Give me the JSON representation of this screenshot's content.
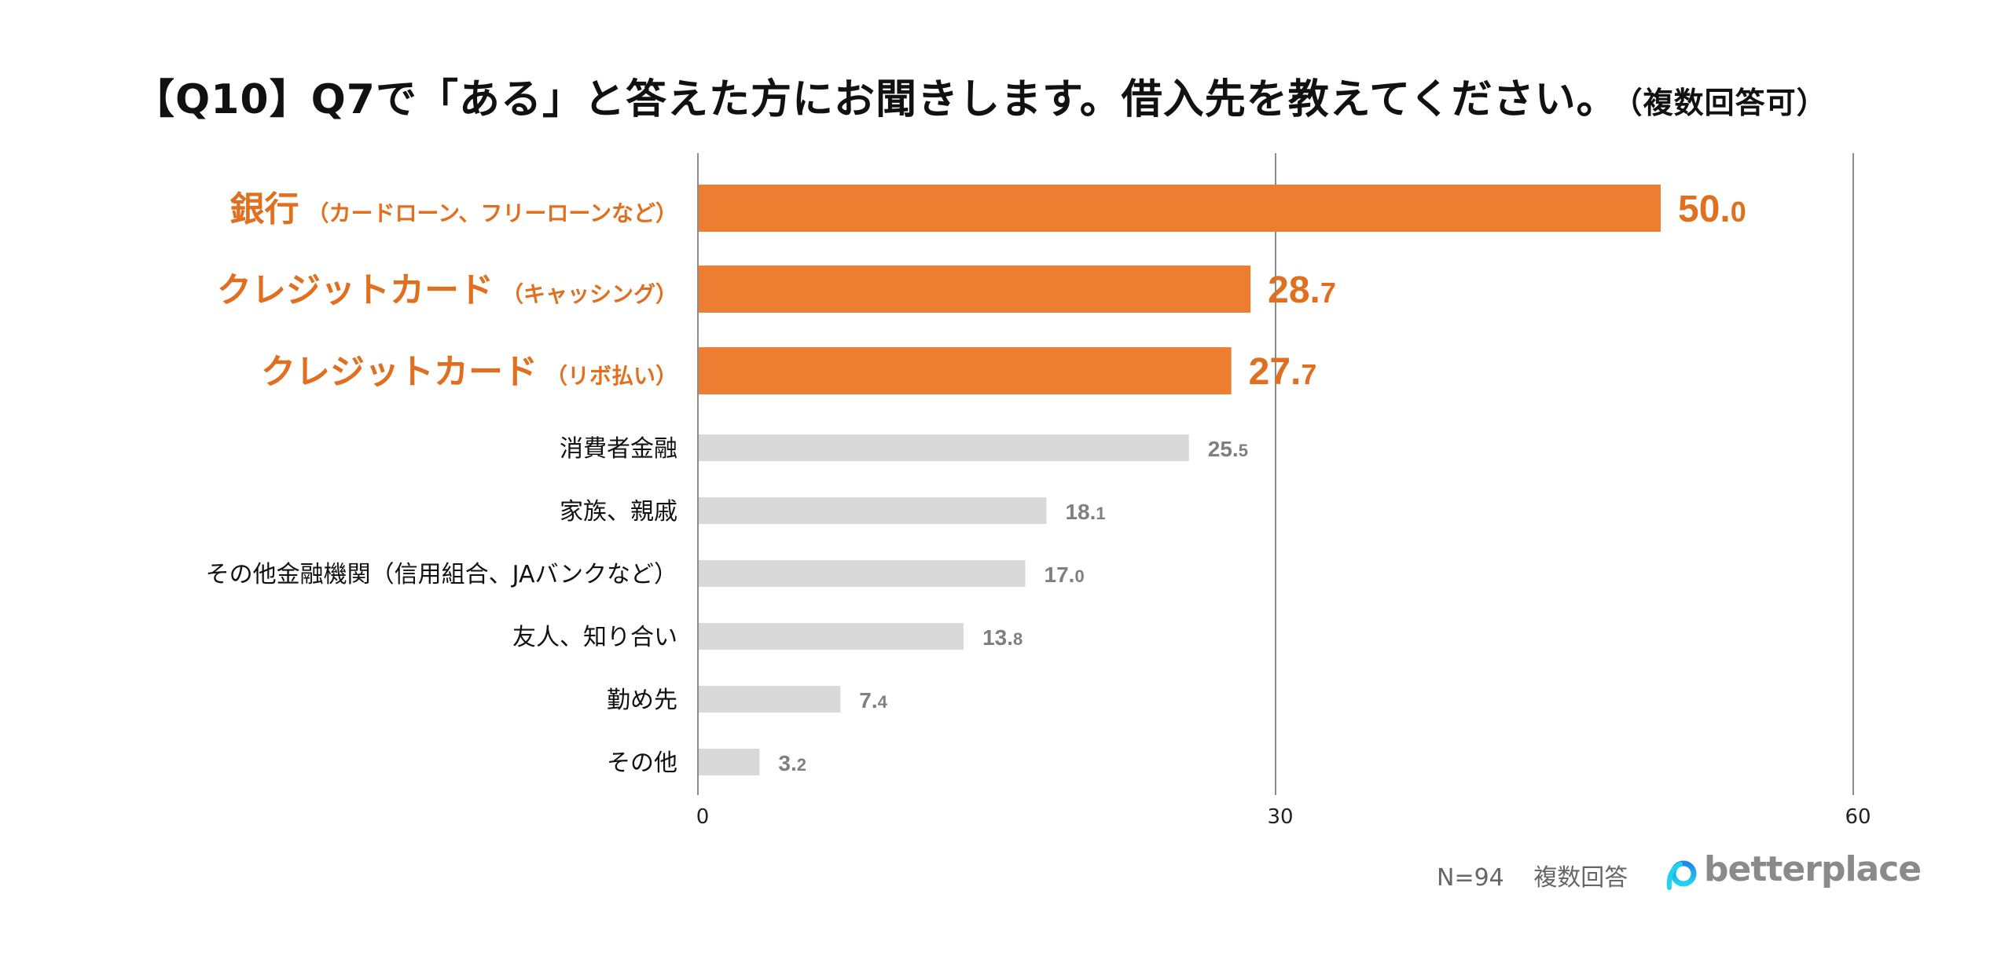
{
  "title": {
    "main": "【Q10】Q7で「ある」と答えた方にお聞きします。借入先を教えてください。",
    "sub": "（複数回答可）"
  },
  "footer": {
    "n": "N=94",
    "note": "複数回答",
    "logo_text": "betterplace"
  },
  "colors": {
    "highlight_bar": "#ED7D31",
    "highlight_text": "#E07020",
    "normal_bar": "#D9D9D9",
    "normal_value_text": "#7F7F7F",
    "normal_label_text": "#111111",
    "gridline": "#8C8C8C",
    "logo_blue": "#1E88E5",
    "logo_cyan": "#22D3EE"
  },
  "chart_data": {
    "type": "bar",
    "orientation": "horizontal",
    "title": "【Q10】Q7で「ある」と答えた方にお聞きします。借入先を教えてください。（複数回答可）",
    "xlabel": "",
    "ylabel": "",
    "xlim": [
      0,
      60
    ],
    "xticks": [
      0,
      30,
      60
    ],
    "grid": true,
    "categories": [
      {
        "main": "銀行",
        "note": "（カードローン、フリーローンなど）",
        "highlight": true
      },
      {
        "main": "クレジットカード",
        "note": "（キャッシング）",
        "highlight": true
      },
      {
        "main": "クレジットカード",
        "note": "（リボ払い）",
        "highlight": true
      },
      {
        "main": "消費者金融",
        "note": "",
        "highlight": false
      },
      {
        "main": "家族、親戚",
        "note": "",
        "highlight": false
      },
      {
        "main": "その他金融機関（信用組合、JAバンクなど）",
        "note": "",
        "highlight": false
      },
      {
        "main": "友人、知り合い",
        "note": "",
        "highlight": false
      },
      {
        "main": "勤め先",
        "note": "",
        "highlight": false
      },
      {
        "main": "その他",
        "note": "",
        "highlight": false
      }
    ],
    "values": [
      50.0,
      28.7,
      27.7,
      25.5,
      18.1,
      17.0,
      13.8,
      7.4,
      3.2
    ],
    "value_unit": "%",
    "footnote": "N=94　複数回答"
  }
}
